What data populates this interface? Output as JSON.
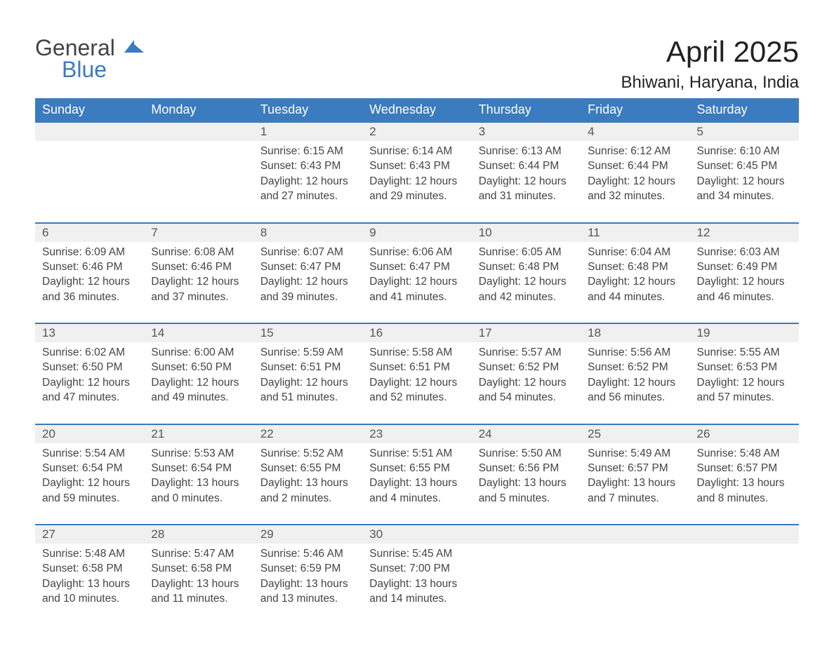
{
  "logo": {
    "part1": "General",
    "part2": "Blue"
  },
  "title": "April 2025",
  "location": "Bhiwani, Haryana, India",
  "colors": {
    "header_bg": "#3b7bbf",
    "header_text": "#ffffff",
    "daynum_bg": "#f0f0f0",
    "rule": "#3b7bbf",
    "text": "#444444",
    "background": "#ffffff"
  },
  "layout": {
    "columns": 7,
    "weeks": 5,
    "first_day_column_index": 2,
    "last_day_column_index": 3
  },
  "weekdays": [
    "Sunday",
    "Monday",
    "Tuesday",
    "Wednesday",
    "Thursday",
    "Friday",
    "Saturday"
  ],
  "labels": {
    "sunrise": "Sunrise:",
    "sunset": "Sunset:",
    "daylight": "Daylight:"
  },
  "days": [
    {
      "n": 1,
      "sunrise": "6:15 AM",
      "sunset": "6:43 PM",
      "daylight": "12 hours and 27 minutes."
    },
    {
      "n": 2,
      "sunrise": "6:14 AM",
      "sunset": "6:43 PM",
      "daylight": "12 hours and 29 minutes."
    },
    {
      "n": 3,
      "sunrise": "6:13 AM",
      "sunset": "6:44 PM",
      "daylight": "12 hours and 31 minutes."
    },
    {
      "n": 4,
      "sunrise": "6:12 AM",
      "sunset": "6:44 PM",
      "daylight": "12 hours and 32 minutes."
    },
    {
      "n": 5,
      "sunrise": "6:10 AM",
      "sunset": "6:45 PM",
      "daylight": "12 hours and 34 minutes."
    },
    {
      "n": 6,
      "sunrise": "6:09 AM",
      "sunset": "6:46 PM",
      "daylight": "12 hours and 36 minutes."
    },
    {
      "n": 7,
      "sunrise": "6:08 AM",
      "sunset": "6:46 PM",
      "daylight": "12 hours and 37 minutes."
    },
    {
      "n": 8,
      "sunrise": "6:07 AM",
      "sunset": "6:47 PM",
      "daylight": "12 hours and 39 minutes."
    },
    {
      "n": 9,
      "sunrise": "6:06 AM",
      "sunset": "6:47 PM",
      "daylight": "12 hours and 41 minutes."
    },
    {
      "n": 10,
      "sunrise": "6:05 AM",
      "sunset": "6:48 PM",
      "daylight": "12 hours and 42 minutes."
    },
    {
      "n": 11,
      "sunrise": "6:04 AM",
      "sunset": "6:48 PM",
      "daylight": "12 hours and 44 minutes."
    },
    {
      "n": 12,
      "sunrise": "6:03 AM",
      "sunset": "6:49 PM",
      "daylight": "12 hours and 46 minutes."
    },
    {
      "n": 13,
      "sunrise": "6:02 AM",
      "sunset": "6:50 PM",
      "daylight": "12 hours and 47 minutes."
    },
    {
      "n": 14,
      "sunrise": "6:00 AM",
      "sunset": "6:50 PM",
      "daylight": "12 hours and 49 minutes."
    },
    {
      "n": 15,
      "sunrise": "5:59 AM",
      "sunset": "6:51 PM",
      "daylight": "12 hours and 51 minutes."
    },
    {
      "n": 16,
      "sunrise": "5:58 AM",
      "sunset": "6:51 PM",
      "daylight": "12 hours and 52 minutes."
    },
    {
      "n": 17,
      "sunrise": "5:57 AM",
      "sunset": "6:52 PM",
      "daylight": "12 hours and 54 minutes."
    },
    {
      "n": 18,
      "sunrise": "5:56 AM",
      "sunset": "6:52 PM",
      "daylight": "12 hours and 56 minutes."
    },
    {
      "n": 19,
      "sunrise": "5:55 AM",
      "sunset": "6:53 PM",
      "daylight": "12 hours and 57 minutes."
    },
    {
      "n": 20,
      "sunrise": "5:54 AM",
      "sunset": "6:54 PM",
      "daylight": "12 hours and 59 minutes."
    },
    {
      "n": 21,
      "sunrise": "5:53 AM",
      "sunset": "6:54 PM",
      "daylight": "13 hours and 0 minutes."
    },
    {
      "n": 22,
      "sunrise": "5:52 AM",
      "sunset": "6:55 PM",
      "daylight": "13 hours and 2 minutes."
    },
    {
      "n": 23,
      "sunrise": "5:51 AM",
      "sunset": "6:55 PM",
      "daylight": "13 hours and 4 minutes."
    },
    {
      "n": 24,
      "sunrise": "5:50 AM",
      "sunset": "6:56 PM",
      "daylight": "13 hours and 5 minutes."
    },
    {
      "n": 25,
      "sunrise": "5:49 AM",
      "sunset": "6:57 PM",
      "daylight": "13 hours and 7 minutes."
    },
    {
      "n": 26,
      "sunrise": "5:48 AM",
      "sunset": "6:57 PM",
      "daylight": "13 hours and 8 minutes."
    },
    {
      "n": 27,
      "sunrise": "5:48 AM",
      "sunset": "6:58 PM",
      "daylight": "13 hours and 10 minutes."
    },
    {
      "n": 28,
      "sunrise": "5:47 AM",
      "sunset": "6:58 PM",
      "daylight": "13 hours and 11 minutes."
    },
    {
      "n": 29,
      "sunrise": "5:46 AM",
      "sunset": "6:59 PM",
      "daylight": "13 hours and 13 minutes."
    },
    {
      "n": 30,
      "sunrise": "5:45 AM",
      "sunset": "7:00 PM",
      "daylight": "13 hours and 14 minutes."
    }
  ]
}
